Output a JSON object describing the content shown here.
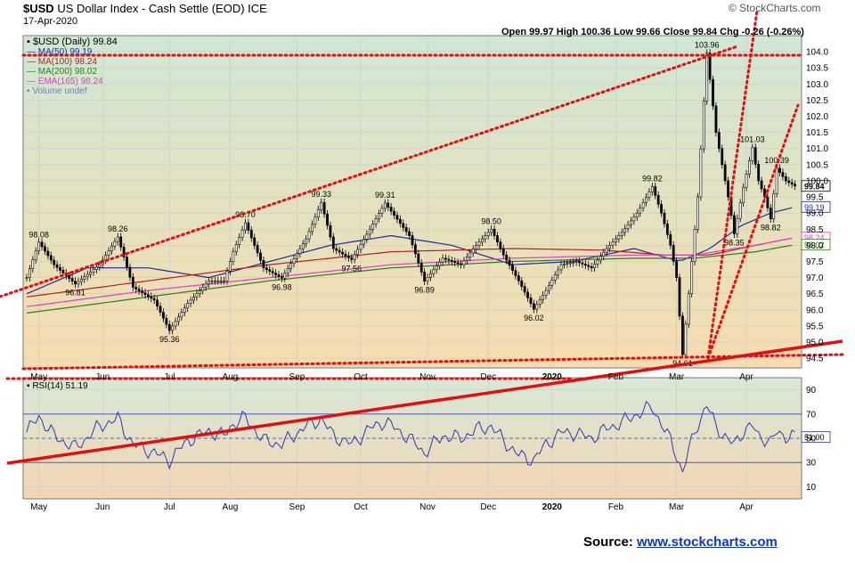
{
  "header": {
    "title_symbol": "$USD",
    "title_name": "US Dollar Index - Cash Settle (EOD)",
    "exchange": "ICE",
    "date": "17-Apr-2020",
    "ohlc": "Open 99.97  High 100.36  Low 99.66  Close 99.84  Chg -0.26 (-0.26%)",
    "watermark": "© StockCharts.com"
  },
  "legend": {
    "main": "$USD (Daily) 99.84",
    "ma50": "MA(50) 99.19",
    "ma100": "MA(100) 98.24",
    "ma200": "MA(200) 98.02",
    "ema165": "EMA(165) 98.24",
    "volume": "Volume undef"
  },
  "rsi_label": "RSI(14) 51.19",
  "source": {
    "prefix": "Source:",
    "link": "www.stockcharts.com"
  },
  "colors": {
    "candle": "#000000",
    "ma50": "#1f2a9c",
    "ma100": "#b22222",
    "ma200": "#2e7d1a",
    "ema165": "#e040c8",
    "rsi": "#2a3ab5",
    "trendline": "#e01010",
    "bg_top": "#cfe7d3",
    "bg_bottom": "#f6dcae"
  },
  "chart_data": [
    {
      "type": "line",
      "subtype": "candlestick",
      "ylim": [
        94.2,
        104.5
      ],
      "y_ticks": [
        94.5,
        95.0,
        95.5,
        96.0,
        96.5,
        97.0,
        97.5,
        98.0,
        98.5,
        99.0,
        99.5,
        100.0,
        100.5,
        101.0,
        101.5,
        102.0,
        102.5,
        103.0,
        103.5,
        104.0
      ],
      "y_tick_labels": [
        "94.5",
        "95.0",
        "95.5",
        "96.0",
        "96.5",
        "97.0",
        "97.5",
        "98.0",
        "98.5",
        "99.0",
        "99.5",
        "100.0",
        "100.5",
        "101.0",
        "101.5",
        "102.0",
        "102.5",
        "103.0",
        "103.5",
        "104.0"
      ],
      "x_tick_labels": [
        "May",
        "Jun",
        "Jul",
        "Aug",
        "Sep",
        "Oct",
        "Nov",
        "Dec",
        "2020",
        "Feb",
        "Mar",
        "Apr"
      ],
      "x_tick_days": [
        4,
        25,
        47,
        67,
        89,
        110,
        132,
        152,
        173,
        194,
        214,
        237
      ],
      "series": [
        {
          "name": "$USD (Daily)",
          "x": [
            0,
            4,
            9,
            16,
            24,
            30,
            35,
            42,
            47,
            53,
            60,
            65,
            68,
            72,
            78,
            84,
            92,
            97,
            101,
            107,
            113,
            118,
            126,
            131,
            137,
            143,
            148,
            153,
            157,
            162,
            167,
            171,
            176,
            181,
            186,
            191,
            196,
            201,
            206,
            209,
            212,
            214,
            216,
            218,
            221,
            224,
            227,
            231,
            233,
            236,
            239,
            241,
            243,
            245,
            247,
            250,
            253
          ],
          "y": [
            97.0,
            98.1,
            97.4,
            96.8,
            97.4,
            98.26,
            96.7,
            96.3,
            95.36,
            96.2,
            96.9,
            96.9,
            97.8,
            98.7,
            97.3,
            96.98,
            98.2,
            99.33,
            97.9,
            97.56,
            98.5,
            99.31,
            98.3,
            96.89,
            97.6,
            97.4,
            98.0,
            98.5,
            97.7,
            96.9,
            96.02,
            96.6,
            97.4,
            97.5,
            97.3,
            97.9,
            98.4,
            99.0,
            99.82,
            99.0,
            98.0,
            97.0,
            94.61,
            96.5,
            99.5,
            103.96,
            101.5,
            99.5,
            98.35,
            99.8,
            101.03,
            100.0,
            99.5,
            98.82,
            100.39,
            100.0,
            99.84
          ]
        },
        {
          "name": "MA(50)",
          "x": [
            0,
            20,
            40,
            60,
            80,
            100,
            120,
            140,
            160,
            180,
            200,
            215,
            225,
            235,
            245,
            253
          ],
          "y": [
            96.5,
            97.3,
            97.3,
            97.0,
            97.5,
            98.0,
            98.3,
            98.0,
            97.4,
            97.5,
            97.9,
            97.5,
            97.9,
            98.6,
            99.0,
            99.19
          ]
        },
        {
          "name": "MA(100)",
          "x": [
            0,
            40,
            80,
            120,
            160,
            190,
            210,
            225,
            240,
            253
          ],
          "y": [
            96.4,
            96.9,
            97.4,
            97.8,
            97.9,
            97.85,
            97.7,
            97.7,
            98.0,
            98.24
          ]
        },
        {
          "name": "MA(200)",
          "x": [
            0,
            40,
            80,
            120,
            160,
            200,
            220,
            240,
            253
          ],
          "y": [
            95.9,
            96.4,
            96.9,
            97.3,
            97.5,
            97.6,
            97.6,
            97.8,
            98.02
          ]
        },
        {
          "name": "EMA(165)",
          "x": [
            0,
            40,
            80,
            120,
            160,
            200,
            220,
            240,
            253
          ],
          "y": [
            96.1,
            96.6,
            97.0,
            97.4,
            97.6,
            97.7,
            97.7,
            98.0,
            98.24
          ]
        }
      ],
      "annotations": [
        {
          "x": 4,
          "y": 98.08,
          "label": "98.08"
        },
        {
          "x": 16,
          "y": 96.81,
          "label": "96.81"
        },
        {
          "x": 30,
          "y": 98.26,
          "label": "98.26"
        },
        {
          "x": 47,
          "y": 95.36,
          "label": "95.36"
        },
        {
          "x": 72,
          "y": 98.7,
          "label": "98.70"
        },
        {
          "x": 84,
          "y": 96.98,
          "label": "96.98"
        },
        {
          "x": 97,
          "y": 99.33,
          "label": "99.33"
        },
        {
          "x": 107,
          "y": 97.56,
          "label": "97.56"
        },
        {
          "x": 118,
          "y": 99.31,
          "label": "99.31"
        },
        {
          "x": 131,
          "y": 96.89,
          "label": "96.89"
        },
        {
          "x": 153,
          "y": 98.5,
          "label": "98.50"
        },
        {
          "x": 167,
          "y": 96.02,
          "label": "96.02"
        },
        {
          "x": 206,
          "y": 99.82,
          "label": "99.82"
        },
        {
          "x": 216,
          "y": 94.61,
          "label": "94.61"
        },
        {
          "x": 224,
          "y": 103.96,
          "label": "103.96"
        },
        {
          "x": 233,
          "y": 98.35,
          "label": "98.35"
        },
        {
          "x": 239,
          "y": 101.03,
          "label": "101.03"
        },
        {
          "x": 245,
          "y": 98.82,
          "label": "98.82"
        },
        {
          "x": 247,
          "y": 100.39,
          "label": "100.39"
        }
      ],
      "right_labels": [
        {
          "y": 99.84,
          "label": "99.84"
        },
        {
          "y": 99.19,
          "label": "99.19"
        },
        {
          "y": 98.24,
          "label": "98.24"
        },
        {
          "y": 98.02,
          "label": "98.02"
        }
      ]
    },
    {
      "type": "line",
      "title": "RSI(14)",
      "ylim": [
        0,
        100
      ],
      "y_ticks": [
        10,
        30,
        50,
        70,
        90
      ],
      "y_tick_labels": [
        "10",
        "30",
        "50",
        "70",
        "90"
      ],
      "x_tick_labels": [
        "May",
        "Jun",
        "Jul",
        "Aug",
        "Sep",
        "Oct",
        "Nov",
        "Dec",
        "2020",
        "Feb",
        "Mar",
        "Apr"
      ],
      "series": [
        {
          "name": "RSI(14)",
          "x": [
            0,
            4,
            9,
            16,
            24,
            30,
            35,
            42,
            47,
            53,
            60,
            65,
            68,
            72,
            78,
            84,
            92,
            97,
            101,
            107,
            113,
            118,
            126,
            131,
            137,
            143,
            148,
            153,
            157,
            162,
            167,
            171,
            176,
            181,
            186,
            191,
            196,
            201,
            206,
            209,
            212,
            214,
            216,
            218,
            221,
            224,
            227,
            231,
            233,
            236,
            239,
            241,
            243,
            245,
            247,
            250,
            253
          ],
          "y": [
            55,
            68,
            52,
            42,
            60,
            66,
            45,
            38,
            32,
            48,
            56,
            52,
            62,
            67,
            48,
            45,
            60,
            66,
            52,
            45,
            58,
            64,
            50,
            38,
            52,
            50,
            57,
            60,
            48,
            36,
            32,
            45,
            55,
            54,
            50,
            58,
            63,
            70,
            76,
            62,
            48,
            36,
            22,
            40,
            62,
            77,
            60,
            48,
            45,
            56,
            60,
            52,
            50,
            46,
            55,
            52,
            51
          ]
        }
      ]
    }
  ]
}
